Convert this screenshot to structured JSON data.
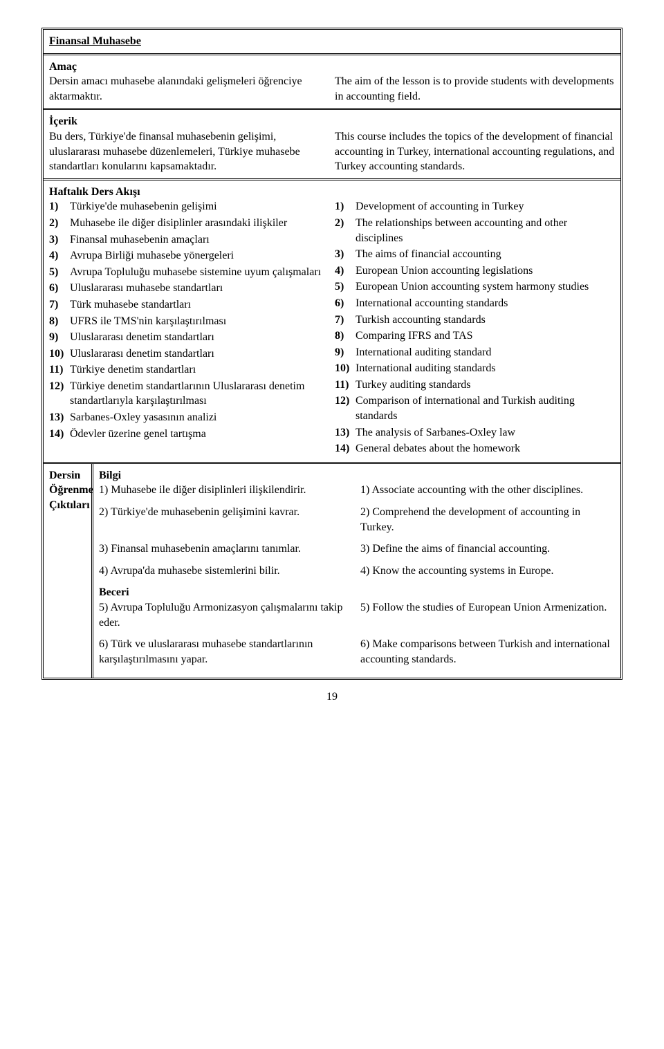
{
  "course_title": "Finansal Muhasebe",
  "amac": {
    "heading": "Amaç",
    "tr": "Dersin amacı muhasebe alanındaki gelişmeleri öğrenciye aktarmaktır.",
    "en": "The aim of the lesson is to provide students with developments in accounting field."
  },
  "icerik": {
    "heading": "İçerik",
    "tr": "Bu ders, Türkiye'de finansal muhasebenin gelişimi, uluslararası muhasebe düzenlemeleri, Türkiye muhasebe standartları konularını kapsamaktadır.",
    "en": "This course includes the topics of the development of financial accounting in Turkey, international accounting regulations, and Turkey accounting standards."
  },
  "akis": {
    "heading": "Haftalık Ders Akışı",
    "rows": [
      {
        "n": "1)",
        "tr": "Türkiye'de muhasebenin gelişimi",
        "en": "Development of accounting in Turkey"
      },
      {
        "n": "2)",
        "tr": "Muhasebe ile diğer disiplinler arasındaki ilişkiler",
        "en": "The relationships between accounting and other disciplines"
      },
      {
        "n": "3)",
        "tr": "Finansal muhasebenin amaçları",
        "en": "The aims of financial accounting"
      },
      {
        "n": "4)",
        "tr": "Avrupa Birliği muhasebe yönergeleri",
        "en": "European Union accounting legislations"
      },
      {
        "n": "5)",
        "tr": "Avrupa Topluluğu muhasebe sistemine uyum çalışmaları",
        "en": "European Union accounting system harmony studies"
      },
      {
        "n": "6)",
        "tr": "Uluslararası muhasebe standartları",
        "en": "International accounting standards"
      },
      {
        "n": "7)",
        "tr": "Türk muhasebe standartları",
        "en": "Turkish accounting standards"
      },
      {
        "n": "8)",
        "tr": "UFRS ile TMS'nin karşılaştırılması",
        "en": "Comparing IFRS and TAS"
      },
      {
        "n": "9)",
        "tr": "Uluslararası denetim standartları",
        "en": "International auditing standard"
      },
      {
        "n": "10)",
        "tr": "Uluslararası denetim standartları",
        "en": "International auditing standards"
      },
      {
        "n": "11)",
        "tr": "Türkiye denetim standartları",
        "en": "Turkey auditing standards"
      },
      {
        "n": "12)",
        "tr": "Türkiye denetim standartlarının Uluslararası denetim standartlarıyla karşılaştırılması",
        "en": "Comparison of international and Turkish auditing standards"
      },
      {
        "n": "13)",
        "tr": "Sarbanes-Oxley yasasının analizi",
        "en": "The analysis of Sarbanes-Oxley law"
      },
      {
        "n": "14)",
        "tr": "Ödevler üzerine genel tartışma",
        "en": "General debates about the homework"
      }
    ]
  },
  "outcomes": {
    "left_top": "Dersin",
    "left_mid": "Öğrenme",
    "left_bot": "Çıktıları",
    "bilgi": "Bilgi",
    "beceri": "Beceri",
    "rows_bilgi": [
      {
        "tr": "1) Muhasebe ile diğer disiplinleri ilişkilendirir.",
        "en": "1) Associate accounting with the other disciplines."
      },
      {
        "tr": "2) Türkiye'de muhasebenin gelişimini kavrar.",
        "en": "2) Comprehend the development of accounting in Turkey."
      },
      {
        "tr": "3) Finansal muhasebenin amaçlarını tanımlar.",
        "en": "3) Define the aims of financial accounting."
      },
      {
        "tr": "4) Avrupa'da muhasebe sistemlerini bilir.",
        "en": "4) Know the accounting systems in Europe."
      }
    ],
    "rows_beceri": [
      {
        "tr": "5) Avrupa Topluluğu Armonizasyon çalışmalarını takip eder.",
        "en": "5) Follow the studies of European Union Armenization."
      },
      {
        "tr": "6) Türk ve uluslararası muhasebe standartlarının karşılaştırılmasını yapar.",
        "en": "6) Make comparisons between Turkish and international accounting standards."
      }
    ]
  },
  "page_number": "19"
}
